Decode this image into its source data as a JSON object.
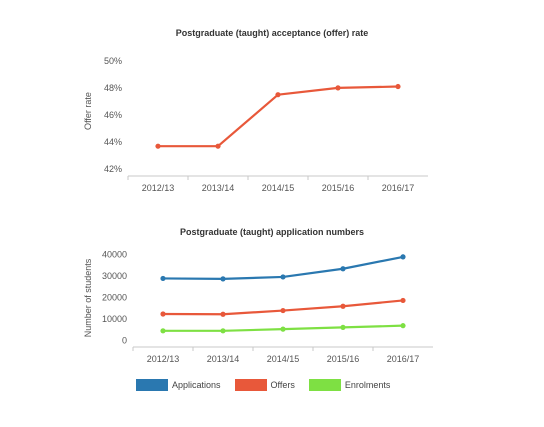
{
  "chart_data": [
    {
      "type": "line",
      "title": "Postgraduate (taught) acceptance (offer) rate",
      "ylabel": "Offer rate",
      "categories": [
        "2012/13",
        "2013/14",
        "2014/15",
        "2015/16",
        "2016/17"
      ],
      "yticks": [
        "42%",
        "44%",
        "46%",
        "48%",
        "50%"
      ],
      "ylim": [
        41.5,
        50.5
      ],
      "grid": false,
      "series": [
        {
          "values": [
            43.7,
            43.7,
            47.5,
            48.0,
            48.1
          ],
          "color": "#e8583a"
        }
      ]
    },
    {
      "type": "line",
      "title": "Postgraduate (taught) application numbers",
      "ylabel": "Number of students",
      "categories": [
        "2012/13",
        "2013/14",
        "2014/15",
        "2015/16",
        "2016/17"
      ],
      "yticks": [
        "0",
        "10000",
        "20000",
        "30000",
        "40000"
      ],
      "ylim": [
        -3000,
        42000
      ],
      "grid": false,
      "legend": "bottom",
      "series": [
        {
          "name": "Applications",
          "values": [
            28800,
            28600,
            29500,
            33300,
            38800
          ],
          "color": "#2a78b0"
        },
        {
          "name": "Offers",
          "values": [
            12300,
            12200,
            13900,
            15900,
            18600
          ],
          "color": "#e8583a"
        },
        {
          "name": "Enrolments",
          "values": [
            4500,
            4500,
            5300,
            6100,
            6900
          ],
          "color": "#7ee043"
        }
      ]
    }
  ]
}
